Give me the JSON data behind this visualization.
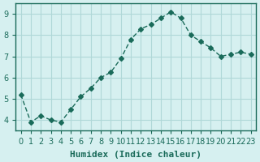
{
  "x": [
    0,
    1,
    2,
    3,
    4,
    5,
    6,
    7,
    8,
    9,
    10,
    11,
    12,
    13,
    14,
    15,
    16,
    17,
    18,
    19,
    20,
    21,
    22,
    23
  ],
  "y": [
    5.2,
    3.9,
    4.2,
    4.0,
    3.9,
    4.5,
    5.1,
    5.5,
    6.0,
    6.25,
    6.9,
    7.8,
    8.3,
    8.5,
    8.8,
    9.1,
    8.8,
    8.0,
    7.7,
    7.4,
    7.0,
    7.1,
    7.2,
    7.1
  ],
  "line_color": "#1a6b5a",
  "marker": "D",
  "marker_size": 3,
  "bg_color": "#d6f0f0",
  "grid_color": "#b0d8d8",
  "xlabel": "Humidex (Indice chaleur)",
  "ylim": [
    3.5,
    9.5
  ],
  "xlim": [
    -0.5,
    23.5
  ],
  "yticks": [
    4,
    5,
    6,
    7,
    8,
    9
  ],
  "xticks": [
    0,
    1,
    2,
    3,
    4,
    5,
    6,
    7,
    8,
    9,
    10,
    11,
    12,
    13,
    14,
    15,
    16,
    17,
    18,
    19,
    20,
    21,
    22,
    23
  ],
  "tick_color": "#1a6b5a",
  "axis_color": "#1a6b5a",
  "xlabel_fontsize": 8,
  "tick_fontsize": 7
}
